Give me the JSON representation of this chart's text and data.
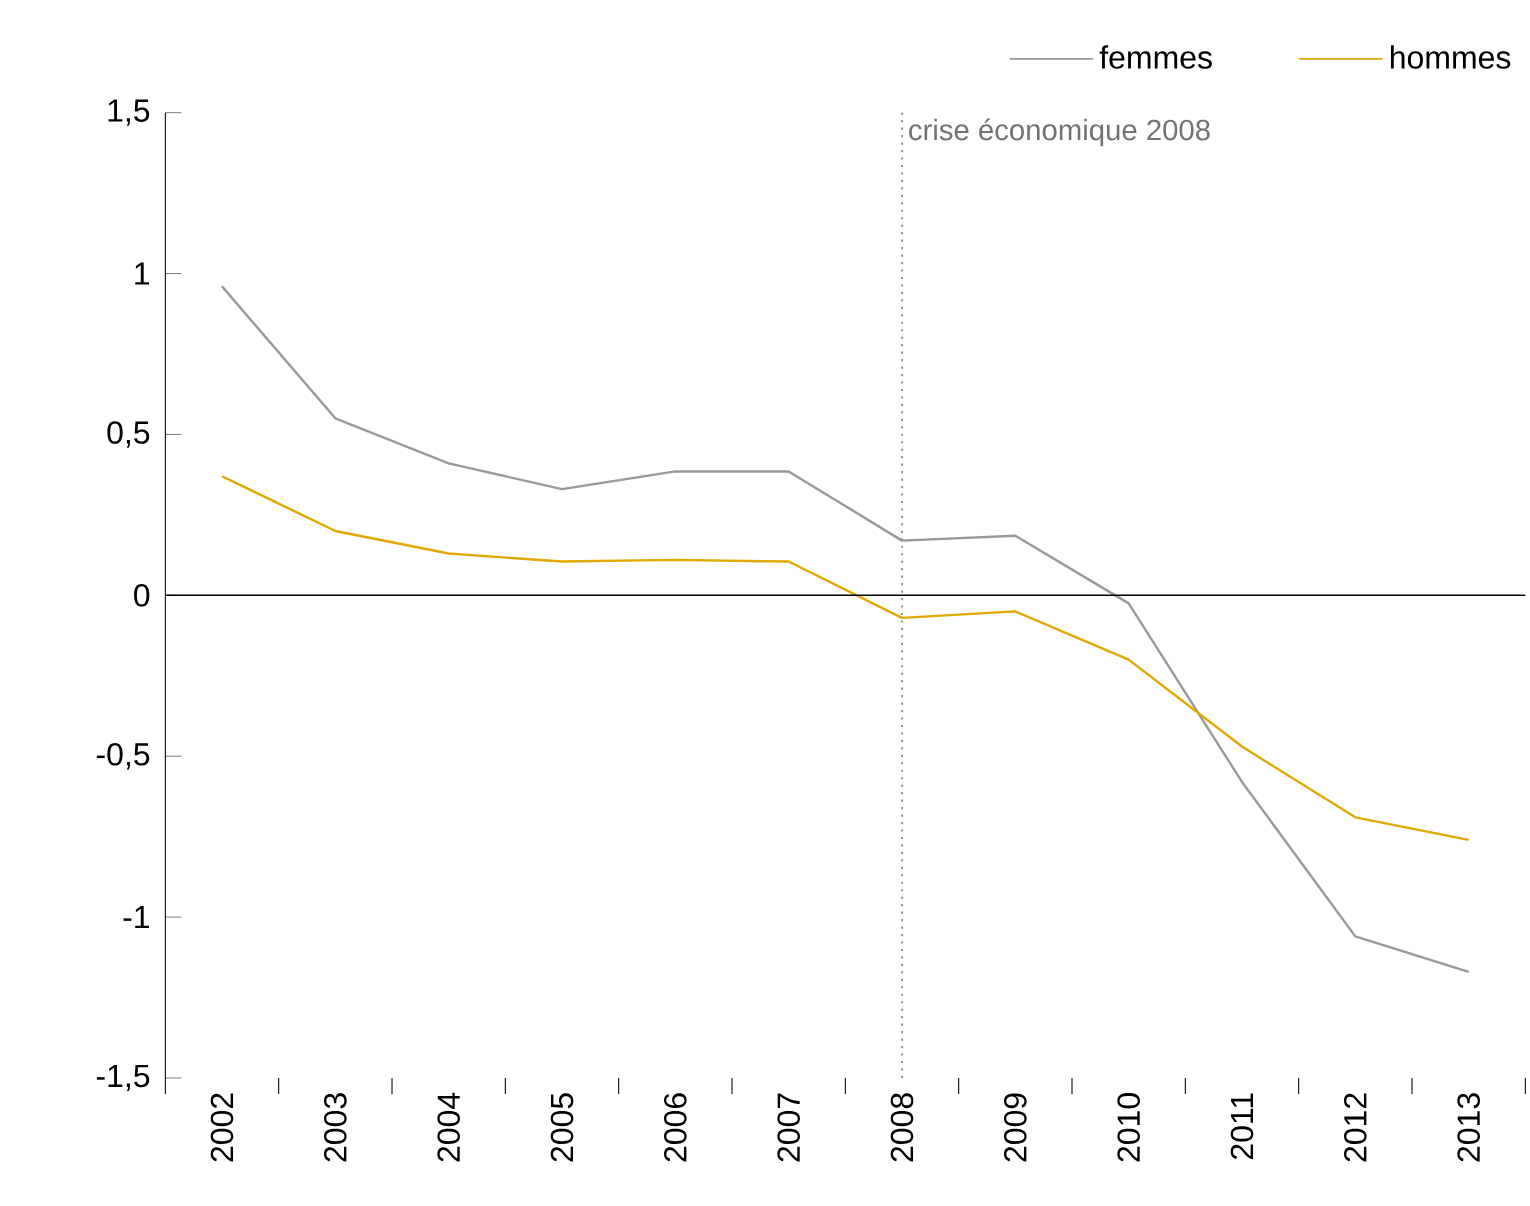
{
  "chart_data": {
    "type": "line",
    "categories": [
      "2002",
      "2003",
      "2004",
      "2005",
      "2006",
      "2007",
      "2008",
      "2009",
      "2010",
      "2011",
      "2012",
      "2013"
    ],
    "series": [
      {
        "name": "femmes",
        "color": "#999999",
        "values": [
          0.96,
          0.55,
          0.41,
          0.33,
          0.385,
          0.385,
          0.17,
          0.185,
          -0.025,
          -0.58,
          -1.06,
          -1.17
        ]
      },
      {
        "name": "hommes",
        "color": "#e0a800",
        "values": [
          0.37,
          0.2,
          0.13,
          0.105,
          0.11,
          0.105,
          -0.07,
          -0.05,
          -0.2,
          -0.47,
          -0.69,
          -0.76
        ]
      }
    ],
    "ylim": [
      -1.5,
      1.5
    ],
    "yticks": [
      {
        "value": -1.5,
        "label": "-1,5"
      },
      -1,
      {
        "value": -0.5,
        "label": "-0,5"
      },
      0,
      {
        "value": 0.5,
        "label": "0,5"
      },
      1,
      {
        "value": 1.5,
        "label": "1,5"
      }
    ],
    "ref_lines": [
      {
        "axis": "x",
        "value": "2008",
        "label": "crise économique 2008",
        "color": "#999999",
        "line_style": "dotted"
      }
    ],
    "legend": "top right",
    "grid": false,
    "marker": "none",
    "line_style": "solid"
  }
}
